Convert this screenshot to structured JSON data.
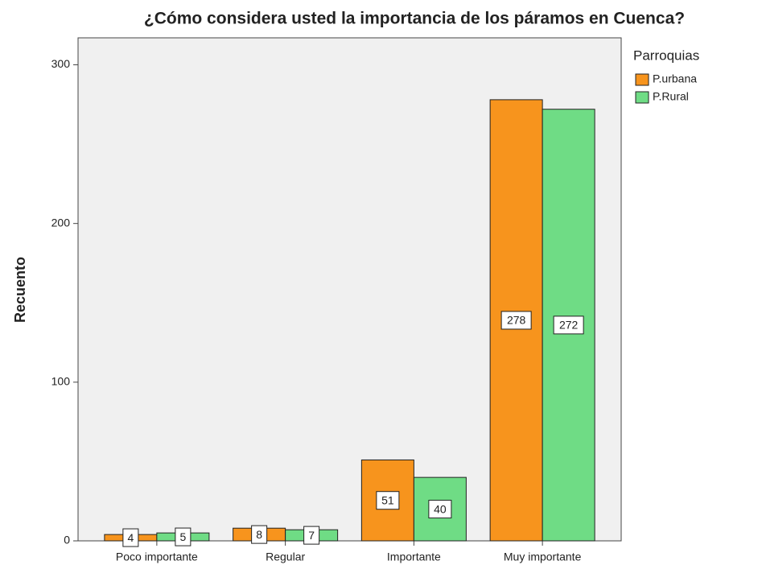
{
  "chart_data": {
    "type": "bar",
    "title": "¿Cómo considera usted la importancia de los páramos en Cuenca?",
    "y_label": "Recuento",
    "legend_title": "Parroquias",
    "categories": [
      "Poco importante",
      "Regular",
      "Importante",
      "Muy importante"
    ],
    "series": [
      {
        "name": "P.urbana",
        "color": "#f7941d",
        "values": [
          4,
          8,
          51,
          278
        ]
      },
      {
        "name": "P.Rural",
        "color": "#6fdc85",
        "values": [
          5,
          7,
          40,
          272
        ]
      }
    ],
    "ylim": [
      0,
      317
    ],
    "yticks": [
      0,
      100,
      200,
      300
    ],
    "legend": "right"
  }
}
